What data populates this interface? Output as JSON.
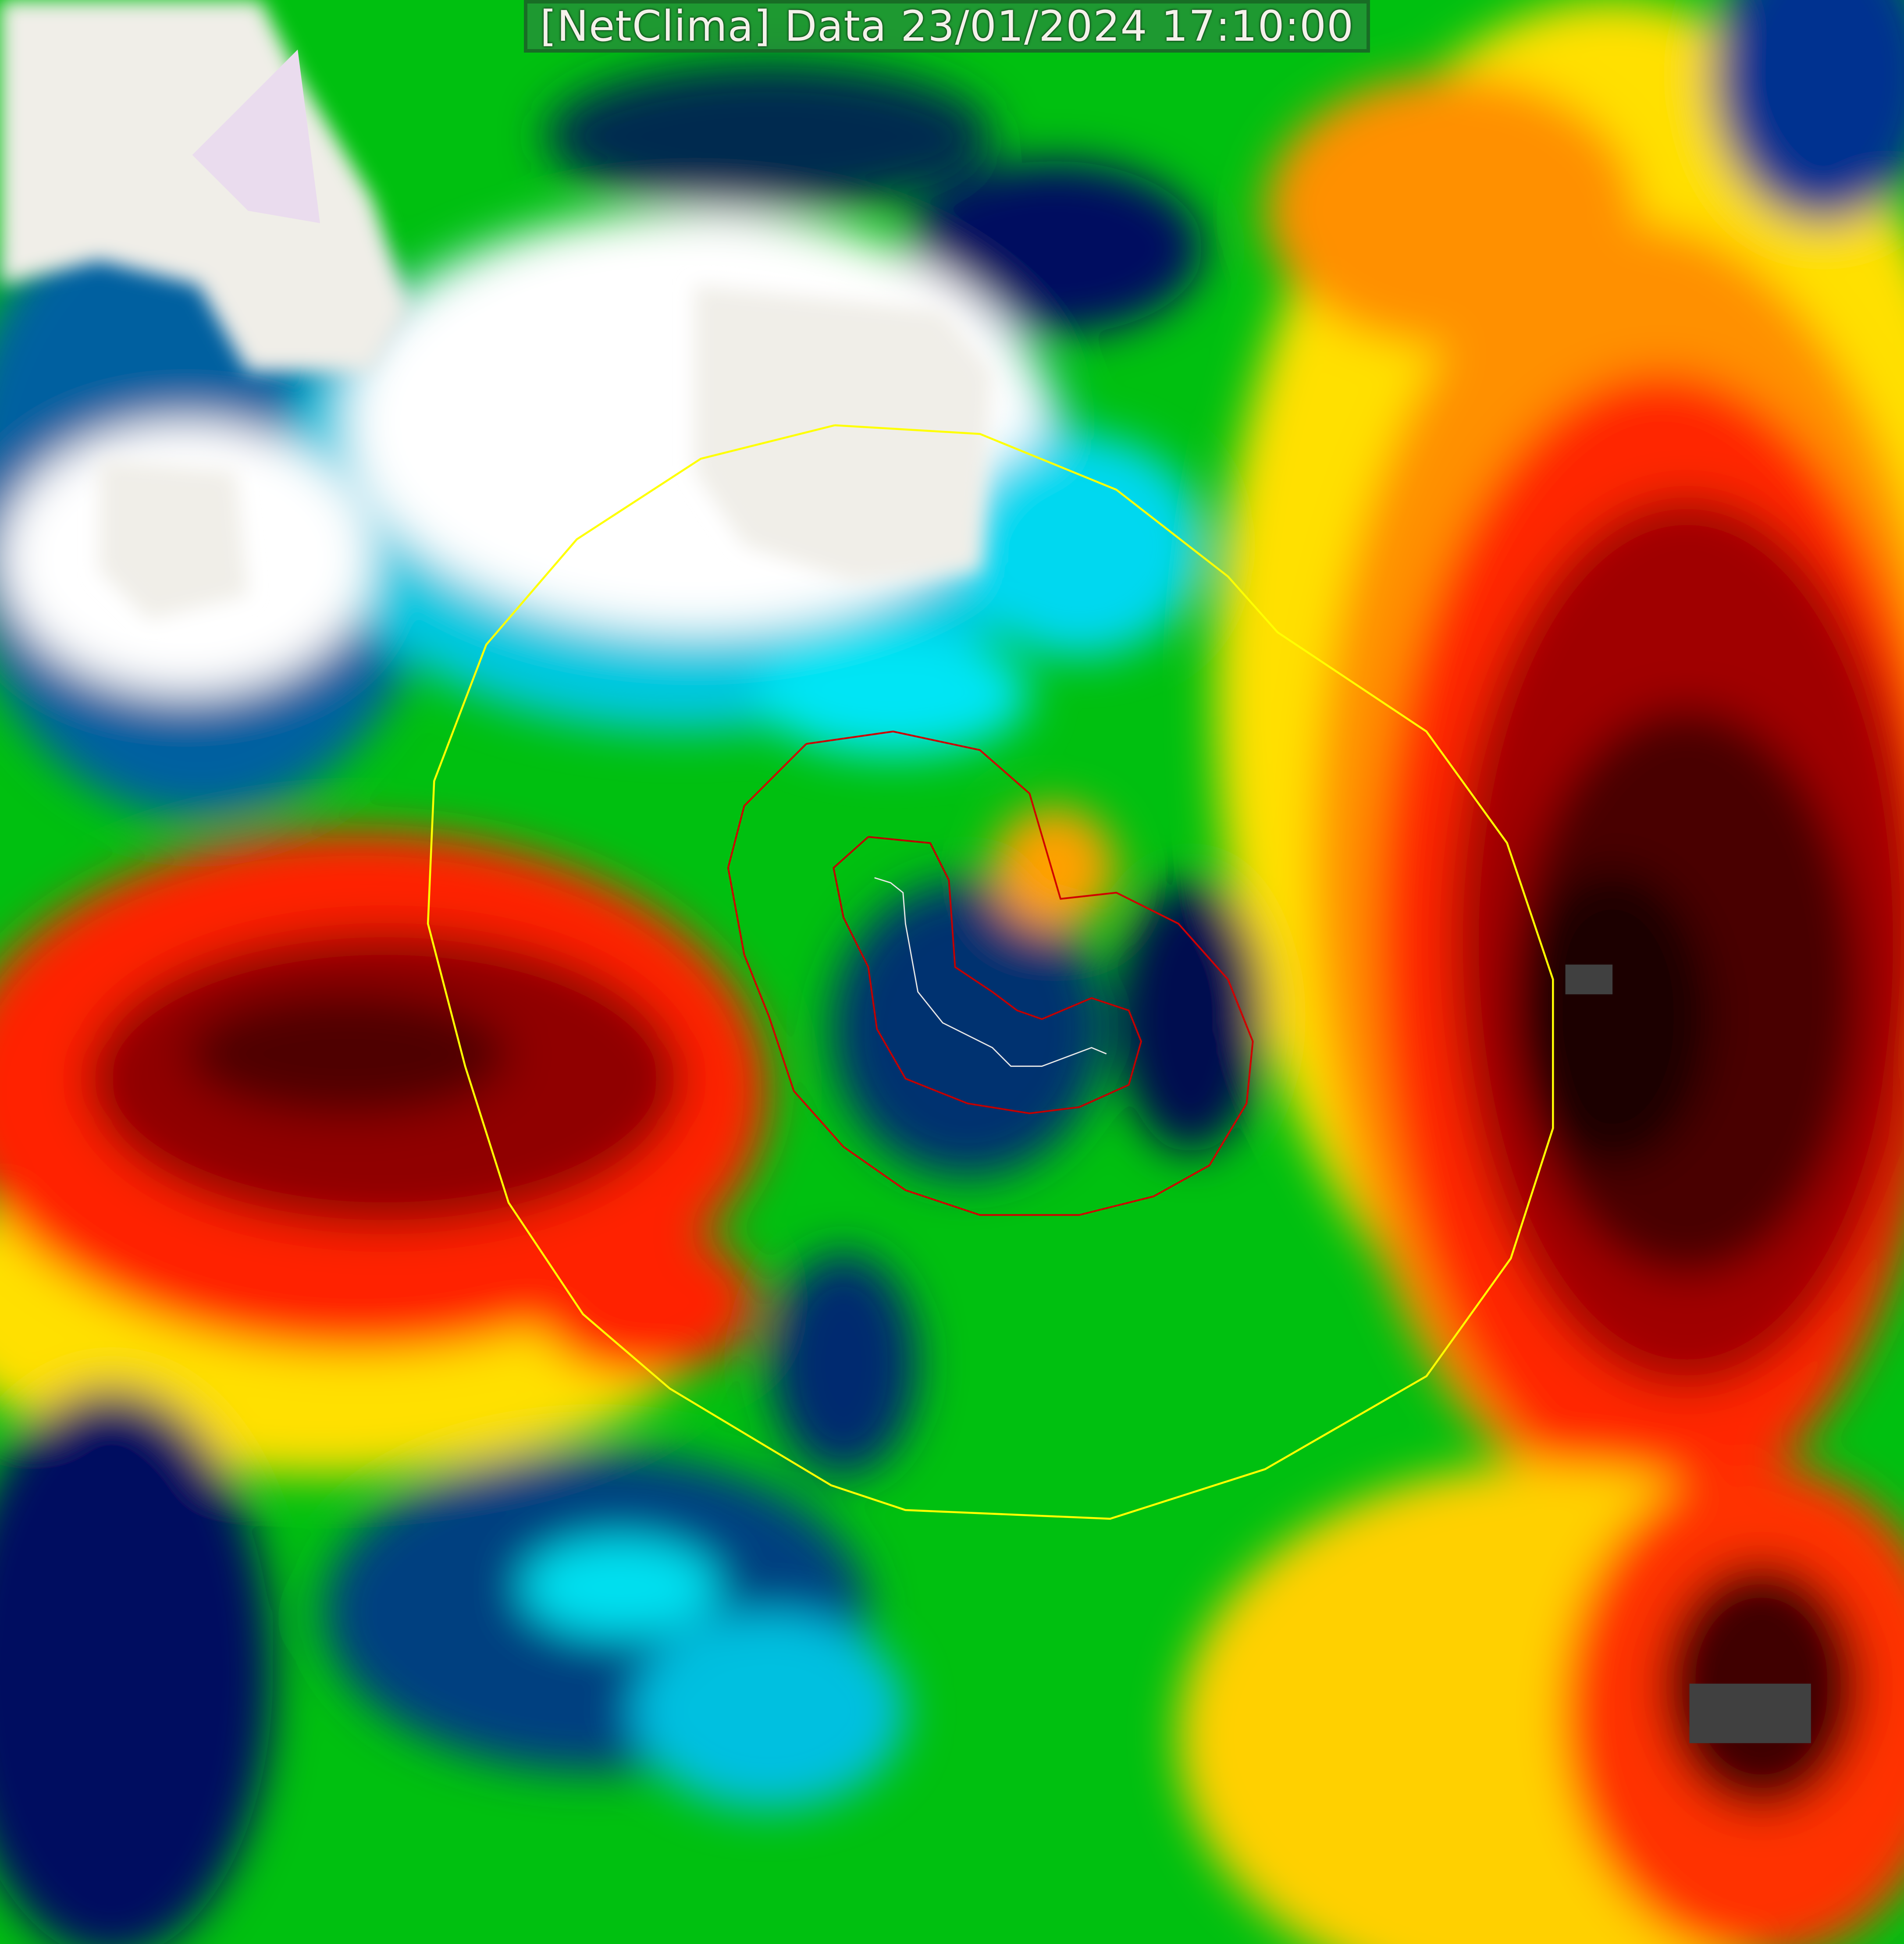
{
  "header": {
    "title": "[NetClima] Data 23/01/2024 17:10:00"
  },
  "map": {
    "type": "satellite cloud-top temperature overlay",
    "overlays": [
      {
        "name": "outer-range-ring",
        "color": "#ffff00"
      },
      {
        "name": "outer-contour",
        "color": "#cc0000"
      },
      {
        "name": "inner-contour",
        "color": "#cc0000"
      },
      {
        "name": "storm-track",
        "color": "#e0e0e0"
      }
    ],
    "palette": [
      "#f0eee8",
      "#ffffff",
      "#00e5ff",
      "#0080c0",
      "#001060",
      "#006030",
      "#00cc00",
      "#40ff00",
      "#ffff00",
      "#ffa000",
      "#ff2000",
      "#8b0000",
      "#200000",
      "#404040"
    ]
  }
}
